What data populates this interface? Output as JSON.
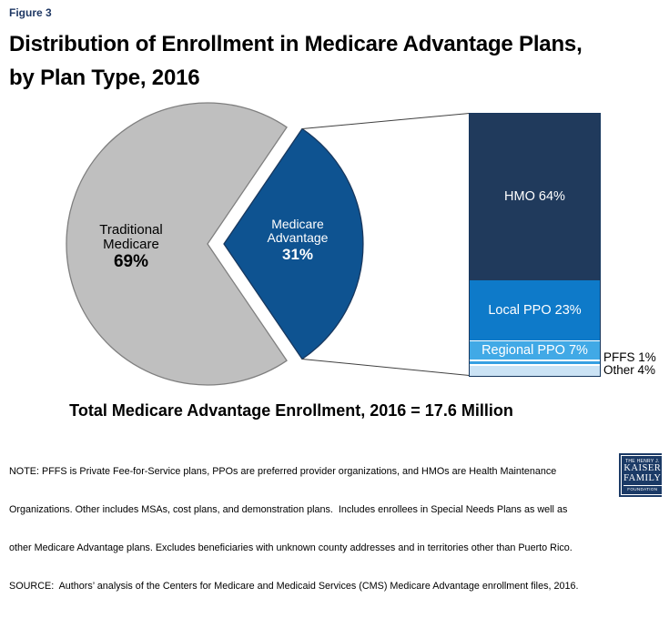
{
  "header": {
    "figure_label": "Figure 3",
    "title_line1": "Distribution of Enrollment in Medicare Advantage Plans,",
    "title_line2": "by Plan Type, 2016"
  },
  "caption": "Total Medicare Advantage Enrollment, 2016 = 17.6 Million",
  "notes": {
    "lines": [
      "NOTE: PFFS is Private Fee-for-Service plans, PPOs are preferred provider organizations, and HMOs are Health Maintenance",
      "Organizations. Other includes MSAs, cost plans, and demonstration plans.  Includes enrollees in Special Needs Plans as well as",
      "other Medicare Advantage plans. Excludes beneficiaries with unknown county addresses and in territories other than Puerto Rico.",
      "SOURCE:  Authors’ analysis of the Centers for Medicare and Medicaid Services (CMS) Medicare Advantage enrollment files, 2016."
    ]
  },
  "logo": {
    "lines": [
      "THE HENRY J.",
      "KAISER",
      "FAMILY",
      "FOUNDATION"
    ]
  },
  "colors": {
    "figure_label_navy": "#1f3864",
    "pie_gray": "#bfbfbf",
    "pie_gray_border": "#7f7f7f",
    "pie_blue": "#0e5391",
    "pie_blue_border": "#17375e",
    "bar_border_navy": "#17375e",
    "callout_line": "#404040",
    "kff_navy": "#1b3a66"
  },
  "chart_data": {
    "type": "pie",
    "title": "Distribution of Enrollment in Medicare Advantage Plans, by Plan Type, 2016",
    "caption": "Total Medicare Advantage Enrollment, 2016 = 17.6 Million",
    "pie": {
      "slices": [
        {
          "label": "Traditional Medicare",
          "value": 69,
          "color": "#bfbfbf",
          "text_color": "#000000",
          "exploded": false
        },
        {
          "label": "Medicare Advantage",
          "value": 31,
          "color": "#0e5391",
          "text_color": "#ffffff",
          "exploded": true
        }
      ]
    },
    "stacked_bar": {
      "represents": "Medicare Advantage 31%",
      "segments": [
        {
          "label": "HMO",
          "value": 64,
          "color": "#203a5c",
          "text_color": "#ffffff",
          "label_placement": "inside"
        },
        {
          "label": "Local PPO",
          "value": 23,
          "color": "#0e7ac9",
          "text_color": "#ffffff",
          "label_placement": "inside"
        },
        {
          "label": "Regional PPO",
          "value": 7,
          "color": "#41a9e6",
          "text_color": "#ffffff",
          "label_placement": "inside"
        },
        {
          "label": "PFFS",
          "value": 1,
          "color": "#36a0e2",
          "text_color": "#000000",
          "label_placement": "outside"
        },
        {
          "label": "Other",
          "value": 4,
          "color": "#cbe3f5",
          "text_color": "#000000",
          "label_placement": "outside"
        }
      ]
    }
  }
}
